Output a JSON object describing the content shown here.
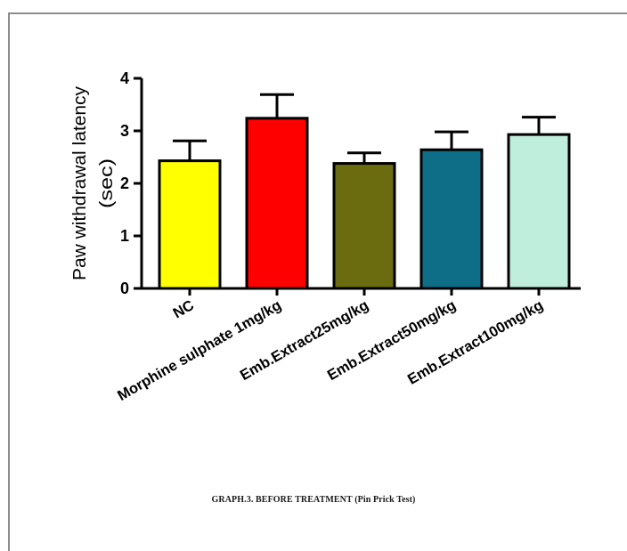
{
  "caption": "GRAPH.3. BEFORE TREATMENT (Pin Prick Test)",
  "chart_data": {
    "type": "bar",
    "title": "",
    "xlabel": "",
    "ylabel_lines": [
      "Paw withdrawal latency",
      "(sec)"
    ],
    "ylim": [
      0,
      4
    ],
    "yticks": [
      0,
      1,
      2,
      3,
      4
    ],
    "categories": [
      "NC",
      "Morphine sulphate 1mg/kg",
      "Emb.Extract25mg/kg",
      "Emb.Extract50mg/kg",
      "Emb.Extract100mg/kg"
    ],
    "values": [
      2.43,
      3.24,
      2.38,
      2.64,
      2.93
    ],
    "error_bars": [
      0.38,
      0.45,
      0.2,
      0.34,
      0.33
    ],
    "colors": [
      "#ffff00",
      "#ff0000",
      "#6b6b10",
      "#0e6e88",
      "#bfeedd"
    ],
    "grid": false,
    "legend": "none"
  }
}
